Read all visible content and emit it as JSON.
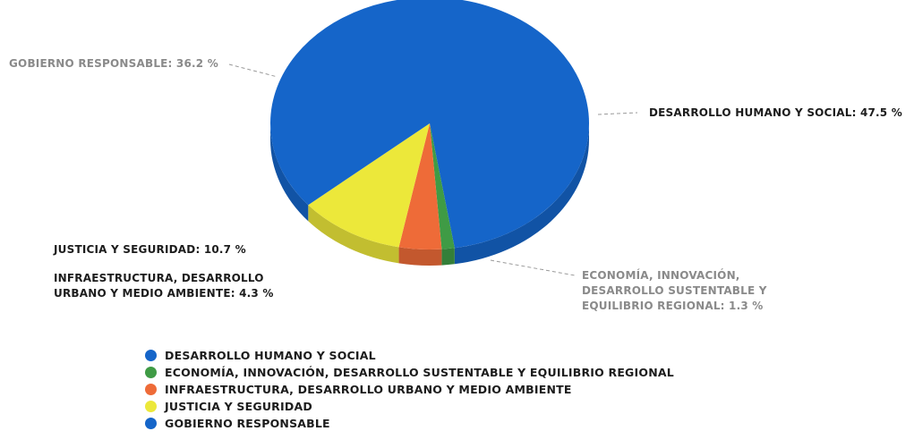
{
  "chart_data": {
    "type": "pie",
    "style": "3d",
    "legend_position": "bottom",
    "slices": [
      {
        "name": "DESARROLLO HUMANO Y SOCIAL",
        "value": 47.5,
        "color": "#1565c9",
        "label_lines": [
          "DESARROLLO HUMANO Y SOCIAL: 47.5 %"
        ]
      },
      {
        "name": "ECONOMÍA, INNOVACIÓN, DESARROLLO SUSTENTABLE Y EQUILIBRIO REGIONAL",
        "value": 1.3,
        "color": "#3f9b45",
        "label_lines": [
          "ECONOMÍA, INNOVACIÓN,",
          "DESARROLLO SUSTENTABLE Y",
          "EQUILIBRIO REGIONAL: 1.3 %"
        ]
      },
      {
        "name": "INFRAESTRUCTURA, DESARROLLO URBANO Y MEDIO AMBIENTE",
        "value": 4.3,
        "color": "#ee6b38",
        "label_lines": [
          "INFRAESTRUCTURA, DESARROLLO",
          "URBANO Y MEDIO AMBIENTE: 4.3 %"
        ]
      },
      {
        "name": "JUSTICIA Y SEGURIDAD",
        "value": 10.7,
        "color": "#ece83a",
        "label_lines": [
          "JUSTICIA Y SEGURIDAD: 10.7 %"
        ]
      },
      {
        "name": "GOBIERNO RESPONSABLE",
        "value": 36.2,
        "color": "#1565c9",
        "label_lines": [
          "GOBIERNO RESPONSABLE: 36.2 %"
        ]
      }
    ]
  }
}
